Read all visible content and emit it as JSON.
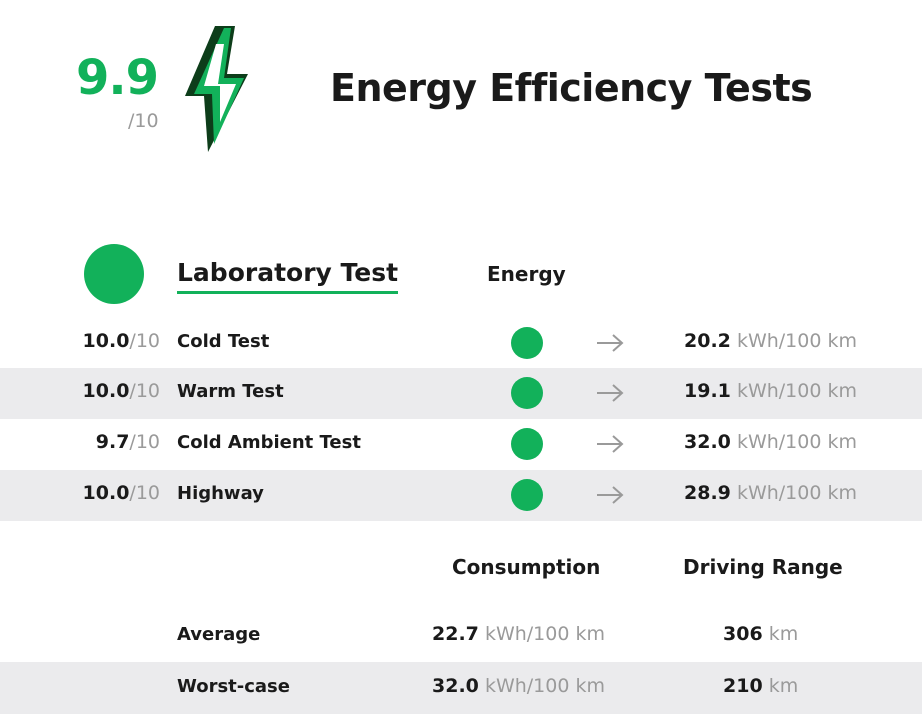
{
  "header": {
    "score": "9.9",
    "score_denominator": "/10",
    "icon": "lightning-bolt-icon",
    "title": "Energy Efficiency Tests"
  },
  "section": {
    "title": "Laboratory Test",
    "energy_column": "Energy"
  },
  "tests": [
    {
      "score": "10.0",
      "denominator": "/10",
      "name": "Cold Test",
      "value": "20.2",
      "unit": "kWh/100 km"
    },
    {
      "score": "10.0",
      "denominator": "/10",
      "name": "Warm Test",
      "value": "19.1",
      "unit": "kWh/100 km"
    },
    {
      "score": "9.7",
      "denominator": "/10",
      "name": "Cold Ambient Test",
      "value": "32.0",
      "unit": "kWh/100 km"
    },
    {
      "score": "10.0",
      "denominator": "/10",
      "name": "Highway",
      "value": "28.9",
      "unit": "kWh/100 km"
    }
  ],
  "summary": {
    "consumption_header": "Consumption",
    "range_header": "Driving Range",
    "rows": [
      {
        "label": "Average",
        "consumption": "22.7",
        "consumption_unit": "kWh/100 km",
        "range": "306",
        "range_unit": "km"
      },
      {
        "label": "Worst-case",
        "consumption": "32.0",
        "consumption_unit": "kWh/100 km",
        "range": "210",
        "range_unit": "km"
      }
    ]
  },
  "colors": {
    "accent_green": "#12b15a",
    "dark_green": "#0d3d1a",
    "muted_text": "#9a9a9a",
    "row_shade": "#ebebed"
  }
}
